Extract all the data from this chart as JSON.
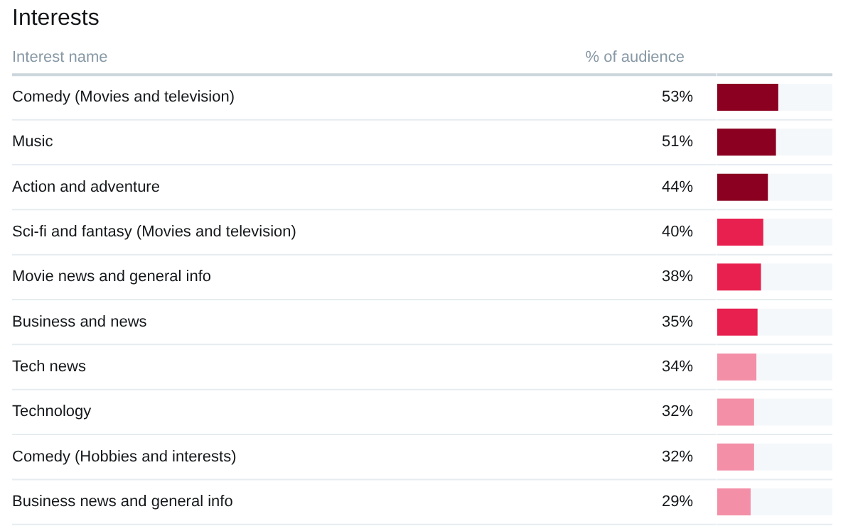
{
  "chart_data": {
    "type": "bar",
    "orientation": "horizontal",
    "title": "Interests",
    "ylabel": "Interest name",
    "xlabel": "% of audience",
    "categories": [
      "Comedy (Movies and television)",
      "Music",
      "Action and adventure",
      "Sci-fi and fantasy (Movies and television)",
      "Movie news and general info",
      "Business and news",
      "Tech news",
      "Technology",
      "Comedy (Hobbies and interests)",
      "Business news and general info"
    ],
    "values": [
      53,
      51,
      44,
      40,
      38,
      35,
      34,
      32,
      32,
      29
    ],
    "value_labels": [
      "53%",
      "51%",
      "44%",
      "40%",
      "38%",
      "35%",
      "34%",
      "32%",
      "32%",
      "29%"
    ],
    "colors": [
      "#8b0020",
      "#8b0020",
      "#8b0020",
      "#e8204f",
      "#e8204f",
      "#e8204f",
      "#f48fa8",
      "#f48fa8",
      "#f48fa8",
      "#f48fa8"
    ],
    "xlim": [
      0,
      100
    ]
  }
}
